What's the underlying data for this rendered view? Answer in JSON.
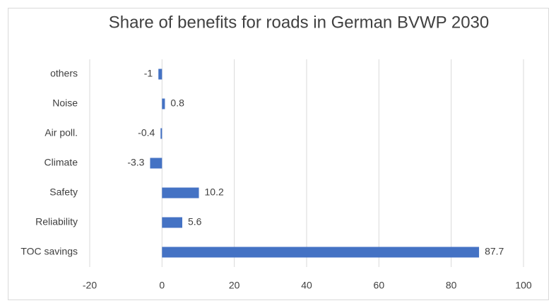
{
  "chart_data": {
    "type": "hbar",
    "title": "Share of benefits for roads in German BVWP 2030",
    "categories": [
      "others",
      "Noise",
      "Air poll.",
      "Climate",
      "Safety",
      "Reliability",
      "TOC savings"
    ],
    "values": [
      -1,
      0.8,
      -0.4,
      -3.3,
      10.2,
      5.6,
      87.7
    ],
    "color": "#4472c4",
    "xlim": [
      -20,
      100
    ],
    "xticks": [
      -20,
      0,
      20,
      40,
      60,
      80,
      100
    ],
    "grid": true
  }
}
